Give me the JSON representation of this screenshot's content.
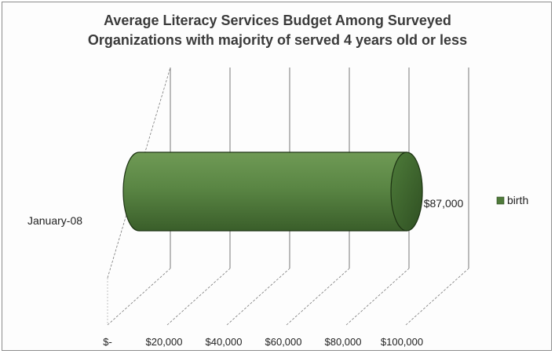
{
  "chart_data": {
    "type": "bar",
    "orientation": "horizontal",
    "style": "3d-cylinder",
    "title_lines": [
      "Average Literacy Services Budget Among Surveyed",
      "Organizations with majority of served 4 years old or less"
    ],
    "categories": [
      "January-08"
    ],
    "series": [
      {
        "name": "birth",
        "values": [
          87000
        ],
        "color": "#4f7a3a"
      }
    ],
    "data_labels": [
      "$87,000"
    ],
    "x_ticks": [
      0,
      20000,
      40000,
      60000,
      80000,
      100000
    ],
    "x_tick_labels": [
      "$-",
      "$20,000",
      "$40,000",
      "$60,000",
      "$80,000",
      "$100,000"
    ],
    "xlim": [
      0,
      100000
    ],
    "grid": true,
    "legend_position": "right"
  }
}
